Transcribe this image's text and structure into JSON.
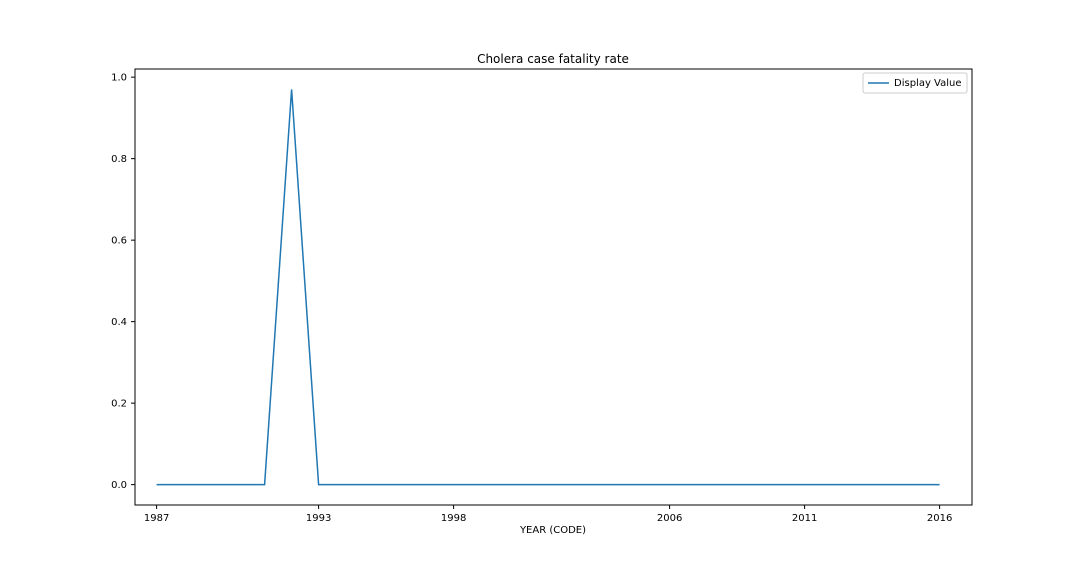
{
  "chart_data": {
    "type": "line",
    "title": "Cholera case fatality rate",
    "xlabel": "YEAR (CODE)",
    "ylabel": "",
    "x_tick_labels": [
      "1987",
      "1993",
      "1998",
      "2006",
      "2011",
      "2016"
    ],
    "y_tick_labels": [
      "0.0",
      "0.2",
      "0.4",
      "0.6",
      "0.8",
      "1.0"
    ],
    "xlim": [
      1986.2,
      2017.2
    ],
    "ylim": [
      -0.05,
      1.02
    ],
    "legend_position": "top-right",
    "grid": false,
    "series": [
      {
        "name": "Display Value",
        "color": "#1f77b4",
        "points": [
          [
            1987,
            0.0
          ],
          [
            1991,
            0.0
          ],
          [
            1992,
            0.97
          ],
          [
            1993,
            0.0
          ],
          [
            2016,
            0.0
          ]
        ]
      }
    ]
  }
}
